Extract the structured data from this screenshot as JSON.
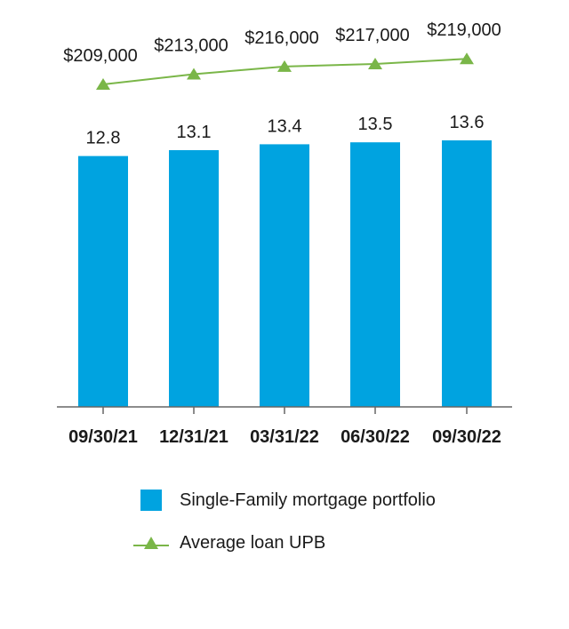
{
  "chart_data": {
    "type": "bar",
    "categories": [
      "09/30/21",
      "12/31/21",
      "03/31/22",
      "06/30/22",
      "09/30/22"
    ],
    "series": [
      {
        "name": "Single-Family mortgage portfolio",
        "type": "bar",
        "values": [
          12.8,
          13.1,
          13.4,
          13.5,
          13.6
        ],
        "labels": [
          "12.8",
          "13.1",
          "13.4",
          "13.5",
          "13.6"
        ],
        "color": "#00a3e0"
      },
      {
        "name": "Average loan UPB",
        "type": "line",
        "values": [
          209000,
          213000,
          216000,
          217000,
          219000
        ],
        "labels": [
          "$209,000",
          "$213,000",
          "$216,000",
          "$217,000",
          "$219,000"
        ],
        "color": "#7ab648",
        "marker": "triangle"
      }
    ],
    "title": "",
    "xlabel": "",
    "ylabel": "",
    "legend_position": "bottom",
    "grid": false
  },
  "legend": {
    "items": [
      {
        "label": "Single-Family mortgage portfolio",
        "icon": "blue-square-icon"
      },
      {
        "label": "Average loan UPB",
        "icon": "green-triangle-line-icon"
      }
    ]
  }
}
